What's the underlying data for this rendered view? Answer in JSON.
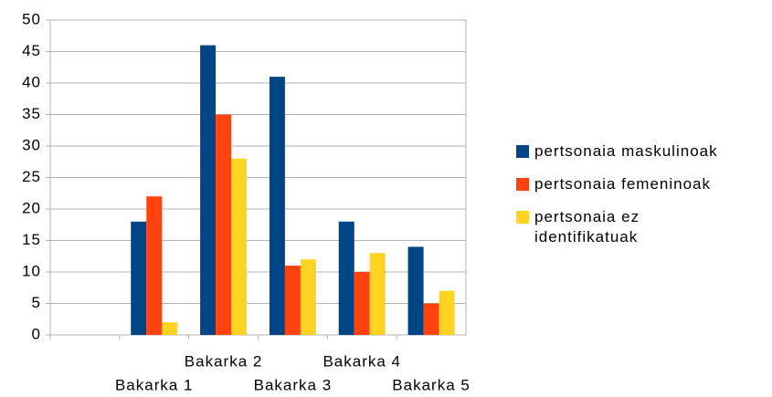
{
  "chart_data": {
    "type": "bar",
    "categories": [
      null,
      "Bakarka 1",
      "Bakarka 2",
      "Bakarka 3",
      "Bakarka 4",
      "Bakarka 5"
    ],
    "series": [
      {
        "name": "pertsonaia maskulinoak",
        "color": "#004586",
        "values": [
          null,
          18,
          46,
          41,
          18,
          14
        ]
      },
      {
        "name": "pertsonaia femeninoak",
        "color": "#ff420e",
        "values": [
          null,
          22,
          35,
          11,
          10,
          5
        ]
      },
      {
        "name": "pertsonaia ez identifikatuak",
        "color": "#ffd320",
        "values": [
          null,
          2,
          28,
          12,
          13,
          7
        ]
      }
    ],
    "ylim": [
      0,
      50
    ],
    "yticks": [
      0,
      5,
      10,
      15,
      20,
      25,
      30,
      35,
      40,
      45,
      50
    ],
    "grid": true,
    "legend": "right"
  }
}
